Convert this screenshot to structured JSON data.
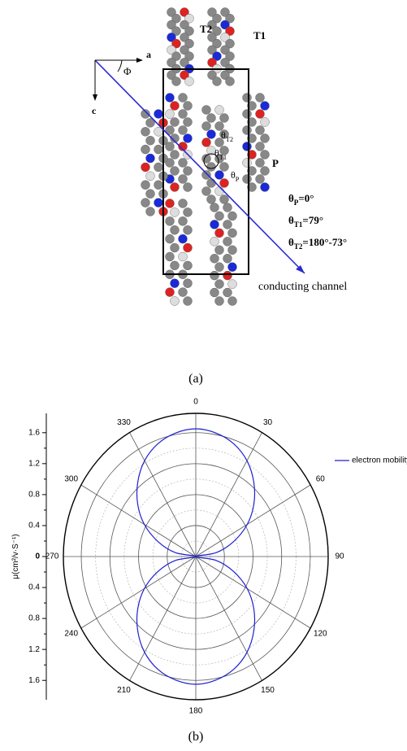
{
  "panel_a": {
    "axis_a": "a",
    "axis_c": "c",
    "phi": "Φ",
    "T1": "T1",
    "T2": "T2",
    "P": "P",
    "theta_T2": {
      "symbol": "θ",
      "sub": "T2"
    },
    "theta_T1": {
      "symbol": "θ",
      "sub": "T1"
    },
    "theta_P": {
      "symbol": "θ",
      "sub": "P"
    },
    "eq_P": {
      "symbol": "θ",
      "sub": "P",
      "text": "=0°"
    },
    "eq_T1": {
      "symbol": "θ",
      "sub": "T1",
      "text": "=79°"
    },
    "eq_T2": {
      "symbol": "θ",
      "sub": "T2",
      "text": "=180°-73°"
    },
    "channel": "conducting channel",
    "caption": "(a)"
  },
  "chart_data": {
    "type": "polar",
    "ylabel": "μ(cm²/v·S⁻¹)",
    "x": [
      0,
      10,
      20,
      30,
      40,
      50,
      60,
      70,
      80,
      90,
      100,
      110,
      120,
      130,
      140,
      150,
      160,
      170,
      180,
      190,
      200,
      210,
      220,
      230,
      240,
      250,
      260,
      270,
      280,
      290,
      300,
      310,
      320,
      330,
      340,
      350
    ],
    "series": [
      {
        "name": "electron mobility",
        "color": "#1f1fd0",
        "values": [
          1.65,
          1.62,
          1.55,
          1.43,
          1.26,
          1.06,
          0.83,
          0.56,
          0.29,
          0,
          0.29,
          0.56,
          0.83,
          1.06,
          1.26,
          1.43,
          1.55,
          1.62,
          1.65,
          1.62,
          1.55,
          1.43,
          1.26,
          1.06,
          0.83,
          0.56,
          0.29,
          0,
          0.29,
          0.56,
          0.83,
          1.06,
          1.26,
          1.43,
          1.55,
          1.62
        ]
      }
    ],
    "xticks": [
      0,
      30,
      60,
      90,
      120,
      150,
      180,
      210,
      240,
      270,
      300,
      330
    ],
    "ylim": [
      0,
      1.85
    ],
    "yticks": [
      0,
      0.4,
      0.8,
      1.2,
      1.6
    ],
    "yminorticks": [
      0.2,
      0.6,
      1.0,
      1.4
    ],
    "legend": "upper right",
    "caption": "(b)"
  }
}
